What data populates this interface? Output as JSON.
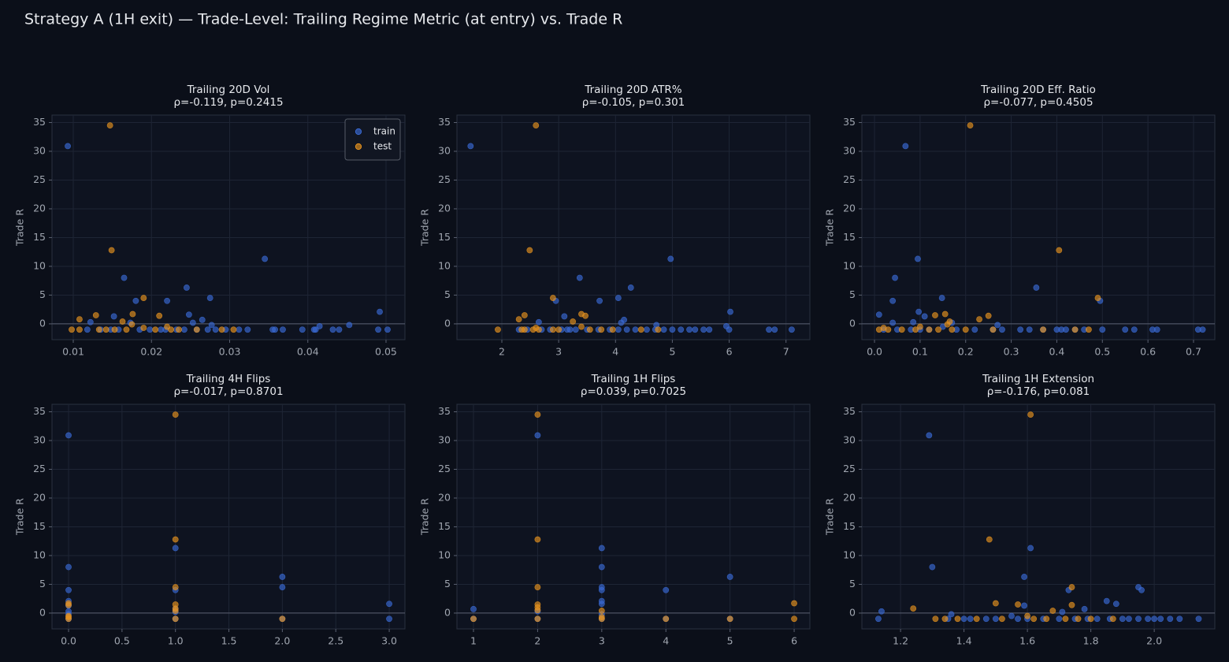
{
  "title": "Strategy A (1H exit) — Trade-Level: Trailing Regime Metric (at entry) vs. Trade R",
  "chart_data": [
    {
      "type": "scatter",
      "title": "Trailing 20D Vol",
      "subtitle": "ρ=-0.119, p=0.2415",
      "ylabel": "Trade R",
      "legend": "upper right",
      "grid": true,
      "hline": 0,
      "xlim": [
        0.00728,
        0.05242
      ],
      "ylim": [
        -2.75,
        36.3
      ],
      "xticks": [
        0.01,
        0.02,
        0.03,
        0.04,
        0.05
      ],
      "yticks": [
        0,
        5,
        10,
        15,
        20,
        25,
        30,
        35
      ],
      "series": [
        {
          "name": "train",
          "color": "#3a6ad4",
          "x": [
            0.0093,
            0.0345,
            0.0165,
            0.0245,
            0.0275,
            0.018,
            0.022,
            0.0492,
            0.0248,
            0.0152,
            0.0265,
            0.0122,
            0.0253,
            0.0173,
            0.0277,
            0.0453,
            0.0415,
            0.0118,
            0.0135,
            0.0148,
            0.0158,
            0.0185,
            0.0198,
            0.0212,
            0.0218,
            0.0232,
            0.0242,
            0.0258,
            0.0272,
            0.0282,
            0.0295,
            0.0312,
            0.0323,
            0.0355,
            0.0358,
            0.0368,
            0.0393,
            0.0408,
            0.041,
            0.0432,
            0.044,
            0.049,
            0.0502
          ],
          "values": [
            30.9,
            11.3,
            8.0,
            6.3,
            4.5,
            4.0,
            4.0,
            2.1,
            1.6,
            1.3,
            0.7,
            0.3,
            0.2,
            0.2,
            -0.2,
            -0.2,
            -0.4,
            -1,
            -1,
            -1,
            -1,
            -1,
            -1,
            -1,
            -1,
            -1,
            -1,
            -1,
            -1,
            -1,
            -1,
            -1,
            -1,
            -1,
            -1,
            -1,
            -1,
            -1,
            -1,
            -1,
            -1,
            -1,
            -1
          ]
        },
        {
          "name": "test",
          "color": "#e8931e",
          "x": [
            0.0147,
            0.0149,
            0.019,
            0.0176,
            0.0129,
            0.021,
            0.0108,
            0.0163,
            0.0175,
            0.022,
            0.019,
            0.0098,
            0.0108,
            0.0133,
            0.0142,
            0.0153,
            0.0168,
            0.0205,
            0.0225,
            0.0235,
            0.0258,
            0.029,
            0.0305
          ],
          "values": [
            34.5,
            12.8,
            4.5,
            1.7,
            1.5,
            1.4,
            0.8,
            0.4,
            -0.1,
            -0.5,
            -0.7,
            -1,
            -1,
            -1,
            -1,
            -1,
            -1,
            -1,
            -1,
            -1,
            -1,
            -1,
            -1
          ]
        }
      ]
    },
    {
      "type": "scatter",
      "title": "Trailing 20D ATR%",
      "subtitle": "ρ=-0.105, p=0.301",
      "ylabel": "Trade R",
      "grid": true,
      "hline": 0,
      "xlim": [
        1.21,
        7.42
      ],
      "ylim": [
        -2.75,
        36.3
      ],
      "xticks": [
        2,
        3,
        4,
        5,
        6,
        7
      ],
      "yticks": [
        0,
        5,
        10,
        15,
        20,
        25,
        30,
        35
      ],
      "series": [
        {
          "color": "#3a6ad4",
          "x": [
            1.45,
            4.97,
            3.37,
            4.27,
            4.05,
            3.72,
            2.95,
            6.02,
            3.1,
            4.15,
            2.65,
            4.1,
            4.72,
            5.95,
            2.3,
            2.45,
            2.7,
            2.85,
            3.05,
            3.15,
            3.2,
            3.3,
            3.5,
            3.7,
            3.9,
            4.05,
            4.2,
            4.35,
            4.55,
            4.7,
            4.85,
            5.0,
            5.15,
            5.3,
            5.4,
            5.55,
            5.65,
            6.0,
            6.7,
            6.8,
            7.1
          ],
          "values": [
            30.9,
            11.3,
            8.0,
            6.3,
            4.5,
            4.0,
            4.0,
            2.1,
            1.3,
            0.7,
            0.3,
            0.2,
            -0.2,
            -0.4,
            -1,
            -1,
            -1,
            -1,
            -1,
            -1,
            -1,
            -1,
            -1,
            -1,
            -1,
            -1,
            -1,
            -1,
            -1,
            -1,
            -1,
            -1,
            -1,
            -1,
            -1,
            -1,
            -1,
            -1,
            -1,
            -1,
            -1
          ]
        },
        {
          "color": "#e8931e",
          "x": [
            2.6,
            2.49,
            2.9,
            3.4,
            2.4,
            3.47,
            2.3,
            3.25,
            3.4,
            2.6,
            1.93,
            2.35,
            2.4,
            2.55,
            2.65,
            2.9,
            3.0,
            3.55,
            3.75,
            3.95,
            4.45,
            4.75
          ],
          "values": [
            34.5,
            12.8,
            4.5,
            1.7,
            1.5,
            1.4,
            0.8,
            0.4,
            -0.5,
            -0.7,
            -1,
            -1,
            -1,
            -1,
            -1,
            -1,
            -1,
            -1,
            -1,
            -1,
            -1,
            -1
          ]
        }
      ]
    },
    {
      "type": "scatter",
      "title": "Trailing 20D Eff. Ratio",
      "subtitle": "ρ=-0.077, p=0.4505",
      "ylabel": "Trade R",
      "grid": true,
      "hline": 0,
      "xlim": [
        -0.0277,
        0.7467
      ],
      "ylim": [
        -2.75,
        36.3
      ],
      "xticks": [
        {
          "value": 0,
          "label": "0.0"
        },
        0.1,
        0.2,
        0.3,
        0.4,
        0.5,
        0.6,
        0.7
      ],
      "yticks": [
        0,
        5,
        10,
        15,
        20,
        25,
        30,
        35
      ],
      "series": [
        {
          "color": "#3a6ad4",
          "x": [
            0.068,
            0.095,
            0.045,
            0.355,
            0.148,
            0.04,
            0.495,
            0.097,
            0.01,
            0.11,
            0.085,
            0.04,
            0.17,
            0.27,
            0.15,
            0.02,
            0.05,
            0.08,
            0.1,
            0.12,
            0.18,
            0.22,
            0.26,
            0.28,
            0.32,
            0.34,
            0.37,
            0.4,
            0.41,
            0.42,
            0.44,
            0.46,
            0.5,
            0.55,
            0.57,
            0.61,
            0.62,
            0.71,
            0.72
          ],
          "values": [
            30.9,
            11.3,
            8.0,
            6.3,
            4.5,
            4.0,
            4.0,
            2.1,
            1.6,
            1.3,
            0.3,
            0.2,
            0.2,
            -0.2,
            -0.5,
            -1,
            -1,
            -1,
            -1,
            -1,
            -1,
            -1,
            -1,
            -1,
            -1,
            -1,
            -1,
            -1,
            -1,
            -1,
            -1,
            -1,
            -1,
            -1,
            -1,
            -1,
            -1,
            -1,
            -1
          ]
        },
        {
          "color": "#e8931e",
          "x": [
            0.21,
            0.405,
            0.49,
            0.155,
            0.133,
            0.25,
            0.23,
            0.165,
            0.16,
            0.1,
            0.02,
            0.01,
            0.03,
            0.06,
            0.09,
            0.12,
            0.14,
            0.17,
            0.2,
            0.26,
            0.37,
            0.44,
            0.47
          ],
          "values": [
            34.5,
            12.8,
            4.5,
            1.7,
            1.5,
            1.4,
            0.8,
            0.4,
            -0.1,
            -0.5,
            -0.7,
            -1,
            -1,
            -1,
            -1,
            -1,
            -1,
            -1,
            -1,
            -1,
            -1,
            -1,
            -1
          ]
        }
      ]
    },
    {
      "type": "scatter",
      "title": "Trailing 4H Flips",
      "subtitle": "ρ=-0.017, p=0.8701",
      "ylabel": "Trade R",
      "grid": true,
      "hline": 0,
      "xlim": [
        -0.155,
        3.147
      ],
      "ylim": [
        -2.75,
        36.3
      ],
      "xticks": [
        {
          "value": 0,
          "label": "0.0"
        },
        0.5,
        {
          "value": 1,
          "label": "1.0"
        },
        1.5,
        {
          "value": 2,
          "label": "2.0"
        },
        2.5,
        {
          "value": 3,
          "label": "3.0"
        }
      ],
      "yticks": [
        0,
        5,
        10,
        15,
        20,
        25,
        30,
        35
      ],
      "series": [
        {
          "color": "#3a6ad4",
          "x": [
            0,
            1,
            0,
            2,
            2,
            0,
            1,
            0,
            3,
            0,
            1,
            0,
            1,
            0,
            0,
            1,
            2,
            3
          ],
          "values": [
            30.9,
            11.3,
            8.0,
            6.3,
            4.5,
            4.0,
            4.0,
            2.1,
            1.6,
            1.3,
            0.7,
            0.3,
            0.2,
            -0.2,
            -1,
            -1,
            -1,
            -1
          ]
        },
        {
          "color": "#e8931e",
          "x": [
            1,
            1,
            1,
            0,
            1,
            0,
            1,
            1,
            0,
            0,
            1,
            2,
            0
          ],
          "values": [
            34.5,
            12.8,
            4.5,
            1.7,
            1.5,
            1.4,
            0.8,
            0.4,
            -0.5,
            -1,
            -1,
            -1,
            -0.7
          ]
        }
      ]
    },
    {
      "type": "scatter",
      "title": "Trailing 1H Flips",
      "subtitle": "ρ=0.039, p=0.7025",
      "ylabel": "Trade R",
      "grid": true,
      "hline": 0,
      "xlim": [
        0.742,
        6.245
      ],
      "ylim": [
        -2.75,
        36.3
      ],
      "xticks": [
        1,
        2,
        3,
        4,
        5,
        6
      ],
      "yticks": [
        0,
        5,
        10,
        15,
        20,
        25,
        30,
        35
      ],
      "series": [
        {
          "color": "#3a6ad4",
          "x": [
            2,
            3,
            3,
            5,
            3,
            4,
            3,
            3,
            3,
            1,
            2,
            3,
            1,
            2,
            3,
            4,
            5
          ],
          "values": [
            30.9,
            11.3,
            8.0,
            6.3,
            4.5,
            4.0,
            4.0,
            2.1,
            1.6,
            0.7,
            0.3,
            -0.2,
            -1,
            -1,
            -1,
            -1,
            -1
          ]
        },
        {
          "color": "#e8931e",
          "x": [
            2,
            2,
            2,
            6,
            2,
            2,
            2,
            3,
            1,
            2,
            3,
            4,
            5,
            6,
            3
          ],
          "values": [
            34.5,
            12.8,
            4.5,
            1.7,
            1.5,
            1.0,
            0.5,
            0.4,
            -1,
            -1,
            -1,
            -1,
            -1,
            -1,
            -0.7
          ]
        }
      ]
    },
    {
      "type": "scatter",
      "title": "Trailing 1H Extension",
      "subtitle": "ρ=-0.176, p=0.081",
      "ylabel": "Trade R",
      "grid": true,
      "hline": 0,
      "xlim": [
        1.078,
        2.191
      ],
      "ylim": [
        -2.75,
        36.3
      ],
      "xticks": [
        1.2,
        1.4,
        1.6,
        1.8,
        {
          "value": 2,
          "label": "2.0"
        }
      ],
      "yticks": [
        0,
        5,
        10,
        15,
        20,
        25,
        30,
        35
      ],
      "series": [
        {
          "color": "#3a6ad4",
          "x": [
            1.29,
            1.61,
            1.3,
            1.59,
            1.95,
            1.73,
            1.96,
            1.85,
            1.88,
            1.59,
            1.78,
            1.14,
            1.71,
            1.36,
            1.55,
            1.13,
            1.35,
            1.4,
            1.42,
            1.47,
            1.5,
            1.57,
            1.6,
            1.65,
            1.7,
            1.75,
            1.79,
            1.82,
            1.86,
            1.9,
            1.92,
            1.95,
            1.98,
            2.0,
            2.02,
            2.05,
            2.08,
            2.14
          ],
          "values": [
            30.9,
            11.3,
            8.0,
            6.3,
            4.5,
            4.0,
            4.0,
            2.1,
            1.6,
            1.3,
            0.7,
            0.3,
            0.2,
            -0.2,
            -0.5,
            -1,
            -1,
            -1,
            -1,
            -1,
            -1,
            -1,
            -1,
            -1,
            -1,
            -1,
            -1,
            -1,
            -1,
            -1,
            -1,
            -1,
            -1,
            -1,
            -1,
            -1,
            -1,
            -1
          ]
        },
        {
          "color": "#e8931e",
          "x": [
            1.61,
            1.48,
            1.74,
            1.5,
            1.57,
            1.74,
            1.24,
            1.68,
            1.6,
            1.31,
            1.34,
            1.38,
            1.44,
            1.52,
            1.62,
            1.66,
            1.72,
            1.76,
            1.8,
            1.87
          ],
          "values": [
            34.5,
            12.8,
            4.5,
            1.7,
            1.5,
            1.4,
            0.8,
            0.4,
            -0.5,
            -1,
            -1,
            -1,
            -1,
            -1,
            -1,
            -1,
            -1,
            -1,
            -1,
            -1
          ]
        }
      ]
    }
  ]
}
